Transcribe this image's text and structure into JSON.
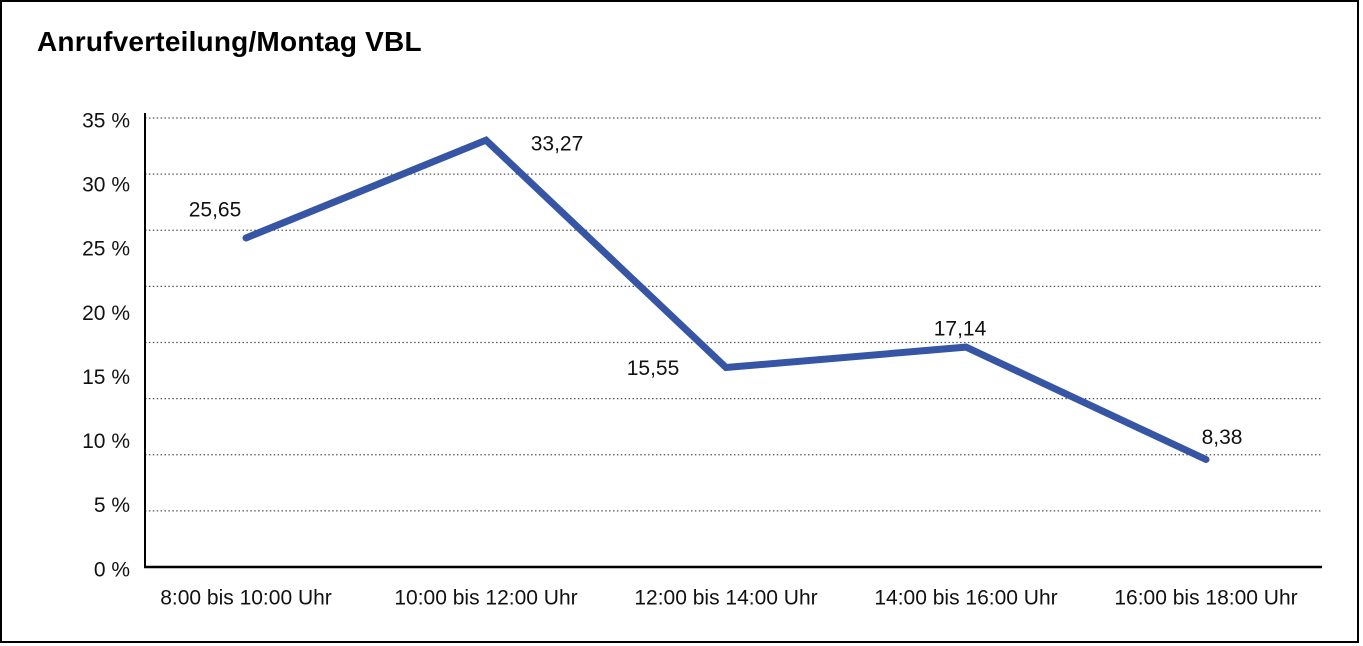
{
  "window": {
    "background": "#ffffff",
    "border_color": "#000000"
  },
  "chart_data": {
    "type": "line",
    "title": "Anrufverteilung/Montag VBL",
    "categories": [
      "8:00 bis 10:00 Uhr",
      "10:00 bis 12:00 Uhr",
      "12:00 bis 14:00 Uhr",
      "14:00 bis 16:00 Uhr",
      "16:00 bis 18:00 Uhr"
    ],
    "series": [
      {
        "values": [
          25.65,
          33.27,
          15.55,
          17.14,
          8.38
        ],
        "color": "#3755A5"
      }
    ],
    "data_labels": [
      "25,65",
      "33,27",
      "15,55",
      "17,14",
      "8,38"
    ],
    "ytick_labels": [
      "0 %",
      "5 %",
      "10 %",
      "15 %",
      "20 %",
      "25 %",
      "30 %",
      "35 %"
    ],
    "ylim": [
      0,
      35
    ],
    "ytick_step": 5,
    "xlabel": "",
    "ylabel": "",
    "grid": "horizontal-dotted",
    "legend": "none"
  }
}
